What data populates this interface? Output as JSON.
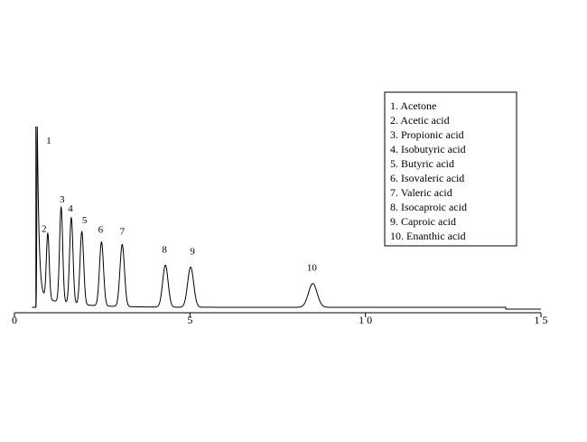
{
  "chart_data": {
    "type": "line",
    "title": "",
    "xlabel": "",
    "ylabel": "",
    "xlim": [
      0,
      15
    ],
    "ylim": [
      0,
      1
    ],
    "x_ticks": [
      {
        "value": 0,
        "label": "0"
      },
      {
        "value": 5,
        "label": "5"
      },
      {
        "value": 10,
        "label": "1 0"
      },
      {
        "value": 15,
        "label": "1 5"
      }
    ],
    "grid": false,
    "legend_position": "top-right",
    "baseline": 0.01,
    "solvent_peak": {
      "label": "1",
      "x": 0.65,
      "height": 1.0
    },
    "peaks": [
      {
        "label": "2",
        "x": 0.95,
        "height": 0.36
      },
      {
        "label": "3",
        "x": 1.33,
        "height": 0.52
      },
      {
        "label": "4",
        "x": 1.62,
        "height": 0.47
      },
      {
        "label": "5",
        "x": 1.92,
        "height": 0.4
      },
      {
        "label": "6",
        "x": 2.48,
        "height": 0.35
      },
      {
        "label": "7",
        "x": 3.07,
        "height": 0.34
      },
      {
        "label": "8",
        "x": 4.3,
        "height": 0.23
      },
      {
        "label": "9",
        "x": 5.02,
        "height": 0.22
      },
      {
        "label": "10",
        "x": 8.5,
        "height": 0.13
      }
    ],
    "legend": [
      "1.  Acetone",
      "2.  Acetic acid",
      "3.  Propionic acid",
      "4.  Isobutyric acid",
      "5.  Butyric acid",
      "6.  Isovaleric acid",
      "7.  Valeric acid",
      "8.  Isocaproic acid",
      "9.  Caproic acid",
      "10. Enanthic acid"
    ]
  }
}
